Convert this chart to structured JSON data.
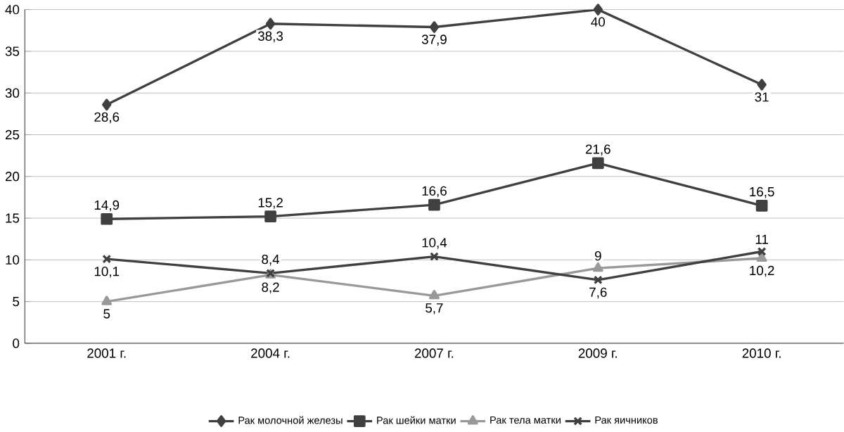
{
  "chart_data": {
    "type": "line",
    "categories": [
      "2001 г.",
      "2004 г.",
      "2007 г.",
      "2009 г.",
      "2010 г."
    ],
    "ylim": [
      0,
      40
    ],
    "yticks": [
      0,
      5,
      10,
      15,
      20,
      25,
      30,
      35,
      40
    ],
    "grid": "y",
    "legend": "bottom",
    "series": [
      {
        "name": "Рак молочной железы",
        "color": "#404040",
        "marker": "diamond",
        "values": [
          28.6,
          38.3,
          37.9,
          40,
          31
        ],
        "value_labels": [
          "28,6",
          "38,3",
          "37,9",
          "40",
          "31"
        ]
      },
      {
        "name": "Рак шейки матки",
        "color": "#404040",
        "marker": "square",
        "values": [
          14.9,
          15.2,
          16.6,
          21.6,
          16.5
        ],
        "value_labels": [
          "14,9",
          "15,2",
          "16,6",
          "21,6",
          "16,5"
        ]
      },
      {
        "name": "Рак тела матки",
        "color": "#999999",
        "marker": "triangle",
        "values": [
          5,
          8.2,
          5.7,
          9,
          10.2
        ],
        "value_labels": [
          "5",
          "8,2",
          "5,7",
          "9",
          "10,2"
        ]
      },
      {
        "name": "Рак яичников",
        "color": "#404040",
        "marker": "cross",
        "values": [
          10.1,
          8.4,
          10.4,
          7.6,
          11
        ],
        "value_labels": [
          "10,1",
          "8,4",
          "10,4",
          "7,6",
          "11"
        ]
      }
    ]
  }
}
